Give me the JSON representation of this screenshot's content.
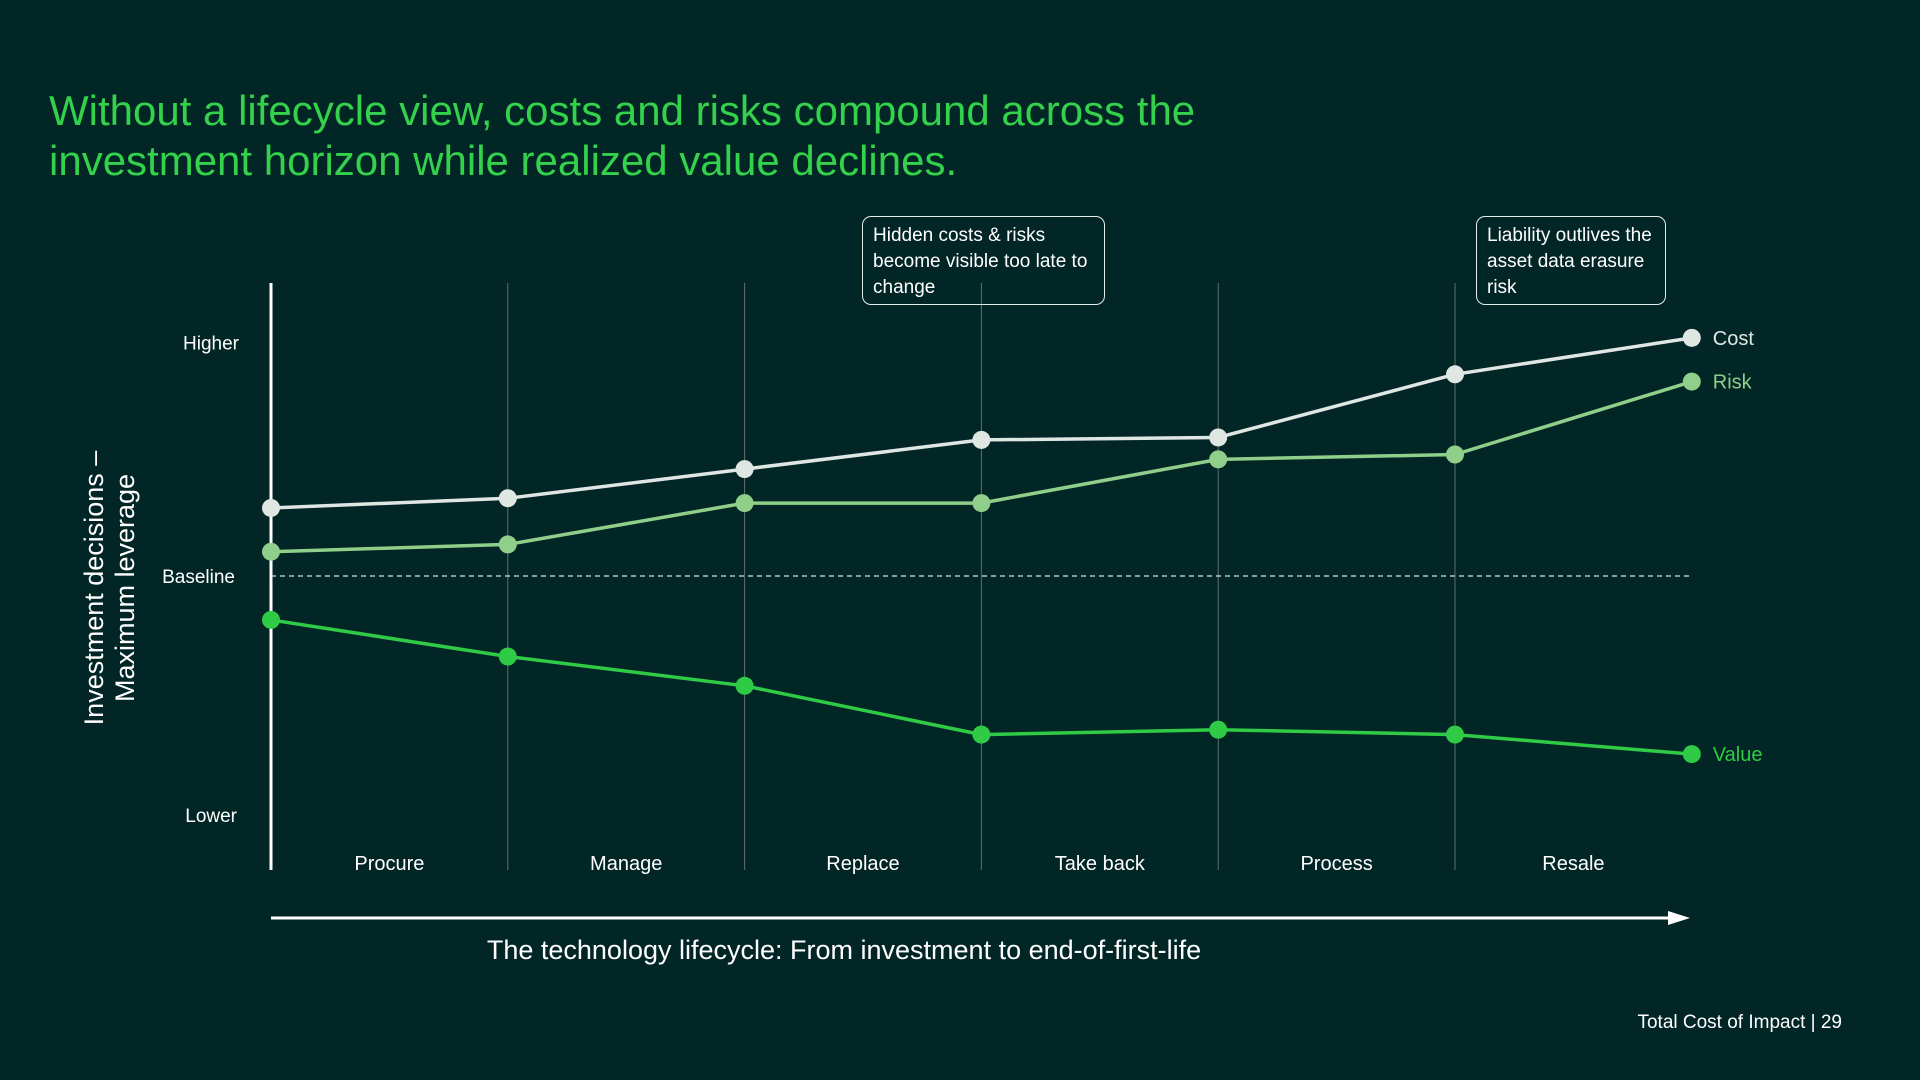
{
  "title": "Without a lifecycle view, costs and risks compound across the investment horizon while realized value declines.",
  "callouts": [
    "Hidden costs & risks become visible too late to change",
    "Liability outlives the asset data erasure risk"
  ],
  "footer": "Total Cost of Impact | 29",
  "colors": {
    "background": "#022525",
    "title": "#33d14c",
    "cost": "#dfe7e3",
    "risk": "#8fcf8a",
    "value": "#2fcb46"
  },
  "chart_data": {
    "type": "line",
    "xlabel": "The technology lifecycle: From investment to end-of-first-life",
    "ylabel": "Investment decisions – Maximum leverage",
    "categories": [
      "Procure",
      "Manage",
      "Replace",
      "Take back",
      "Process",
      "Resale"
    ],
    "x": [
      0,
      1,
      2,
      3,
      4,
      5,
      6
    ],
    "y_ticks": [
      "Higher",
      "Baseline",
      "Lower"
    ],
    "ylim": [
      -1,
      1
    ],
    "baseline": 0,
    "grid": "vertical",
    "legend": "end-of-line labels",
    "series": [
      {
        "name": "Cost",
        "color": "#dfe7e3",
        "values": [
          0.28,
          0.32,
          0.44,
          0.56,
          0.57,
          0.83,
          0.98
        ]
      },
      {
        "name": "Risk",
        "color": "#8fcf8a",
        "values": [
          0.1,
          0.13,
          0.3,
          0.3,
          0.48,
          0.5,
          0.8
        ]
      },
      {
        "name": "Value",
        "color": "#2fcb46",
        "values": [
          -0.18,
          -0.33,
          -0.45,
          -0.65,
          -0.63,
          -0.65,
          -0.73
        ]
      }
    ]
  }
}
